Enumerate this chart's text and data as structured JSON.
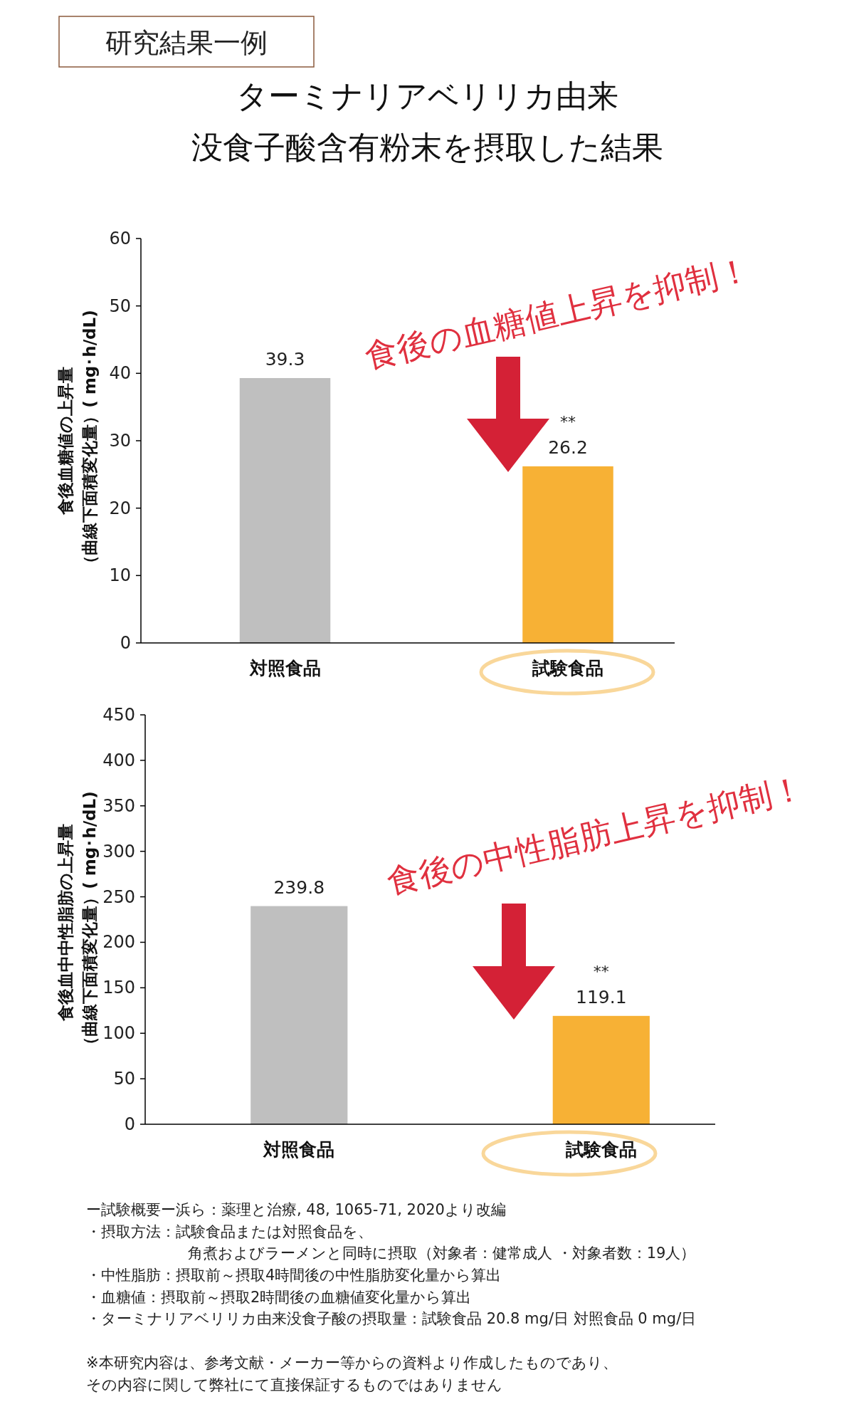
{
  "chart_data": [
    {
      "type": "bar",
      "title": "ターミナリアベリリカ由来",
      "subtitle": "没食子酸含有粉末を摂取した結果",
      "ylabel": "食後血糖値の上昇量（曲線下面積変化量）( mg･h/dL)",
      "categories": [
        "対照食品",
        "試験食品"
      ],
      "values": [
        39.3,
        26.2
      ],
      "colors": [
        "#bfbfbf",
        "#f7b135"
      ],
      "ylim": [
        0,
        60
      ],
      "yticks": [
        0,
        10,
        20,
        30,
        40,
        50,
        60
      ],
      "data_labels": true,
      "annotations": [
        "研究結果一例",
        "食後の血糖値上昇を抑制！",
        {
          "text": "**",
          "x": "試験食品",
          "y": 26.2
        }
      ]
    },
    {
      "type": "bar",
      "ylabel": "食後血中中性脂肪の上昇量（曲線下面積変化量）( mg･h/dL)",
      "categories": [
        "対照食品",
        "試験食品"
      ],
      "values": [
        239.8,
        119.1
      ],
      "colors": [
        "#bfbfbf",
        "#f7b135"
      ],
      "ylim": [
        0,
        450
      ],
      "yticks": [
        0,
        50,
        100,
        150,
        200,
        250,
        300,
        350,
        400,
        450
      ],
      "data_labels": true,
      "annotations": [
        "食後の中性脂肪上昇を抑制！",
        {
          "text": "**",
          "x": "試験食品",
          "y": 119.1
        },
        "ー試験概要ー浜ら：薬理と治療, 48, 1065-71, 2020より改編",
        "・摂取方法：試験食品または対照食品を、",
        "角煮およびラーメンと同時に摂取（対象者：健常成人 ・対象者数：19人）",
        "・中性脂肪：摂取前～摂取4時間後の中性脂肪変化量から算出",
        "・血糖値：摂取前～摂取2時間後の血糖値変化量から算出",
        "・ターミナリアベリリカ由来没食子酸の摂取量：試験食品 20.8 mg/日 対照食品 0 mg/日",
        "※本研究内容は、参考文献・メーカー等からの資料より作成したものであり、",
        "その内容に関して弊社にて直接保証するものではありません"
      ]
    }
  ]
}
